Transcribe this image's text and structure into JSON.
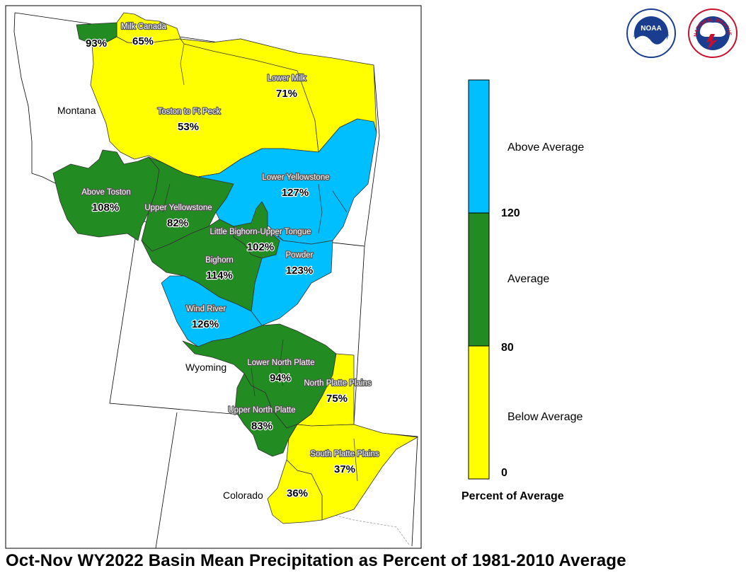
{
  "title": "Oct-Nov WY2022 Basin Mean Precipitation as Percent of 1981-2010 Average",
  "colors": {
    "below": "#ffff00",
    "average": "#228b22",
    "above": "#00bfff"
  },
  "states": {
    "montana": "Montana",
    "wyoming": "Wyoming",
    "colorado": "Colorado"
  },
  "basins": {
    "milk_canada": {
      "name": "Milk Canada",
      "pct": "65%"
    },
    "unlabeled_north": {
      "pct": "93%"
    },
    "lower_milk": {
      "name": "Lower Milk",
      "pct": "71%"
    },
    "toston_ft_peck": {
      "name": "Toston to Ft Peck",
      "pct": "53%"
    },
    "above_toston": {
      "name": "Above Toston",
      "pct": "108%"
    },
    "upper_yellowstone": {
      "name": "Upper Yellowstone",
      "pct": "82%"
    },
    "lower_yellowstone": {
      "name": "Lower Yellowstone",
      "pct": "127%"
    },
    "little_bighorn": {
      "name": "Little Bighorn-Upper Tongue",
      "pct": "102%"
    },
    "powder": {
      "name": "Powder",
      "pct": "123%"
    },
    "bighorn": {
      "name": "Bighorn",
      "pct": "114%"
    },
    "wind_river": {
      "name": "Wind River",
      "pct": "126%"
    },
    "lower_north_platte": {
      "name": "Lower North Platte",
      "pct": "94%"
    },
    "north_platte_plains": {
      "name": "North Platte Plains",
      "pct": "75%"
    },
    "upper_north_platte": {
      "name": "Upper North Platte",
      "pct": "83%"
    },
    "south_platte_plains": {
      "name": "South Platte Plains",
      "pct": "37%"
    },
    "unlabeled_south": {
      "pct": "36%"
    }
  },
  "legend": {
    "title": "Percent of Average",
    "above_label": "Above Average",
    "average_label": "Average",
    "below_label": "Below Average",
    "tick_120": "120",
    "tick_80": "80",
    "tick_0": "0"
  },
  "logos": {
    "noaa_text": "NOAA",
    "noaa_ring": "NATIONAL OCEANIC AND ATMOSPHERIC ADMINISTRATION",
    "nws_ring": "NATIONAL WEATHER SERVICE"
  }
}
